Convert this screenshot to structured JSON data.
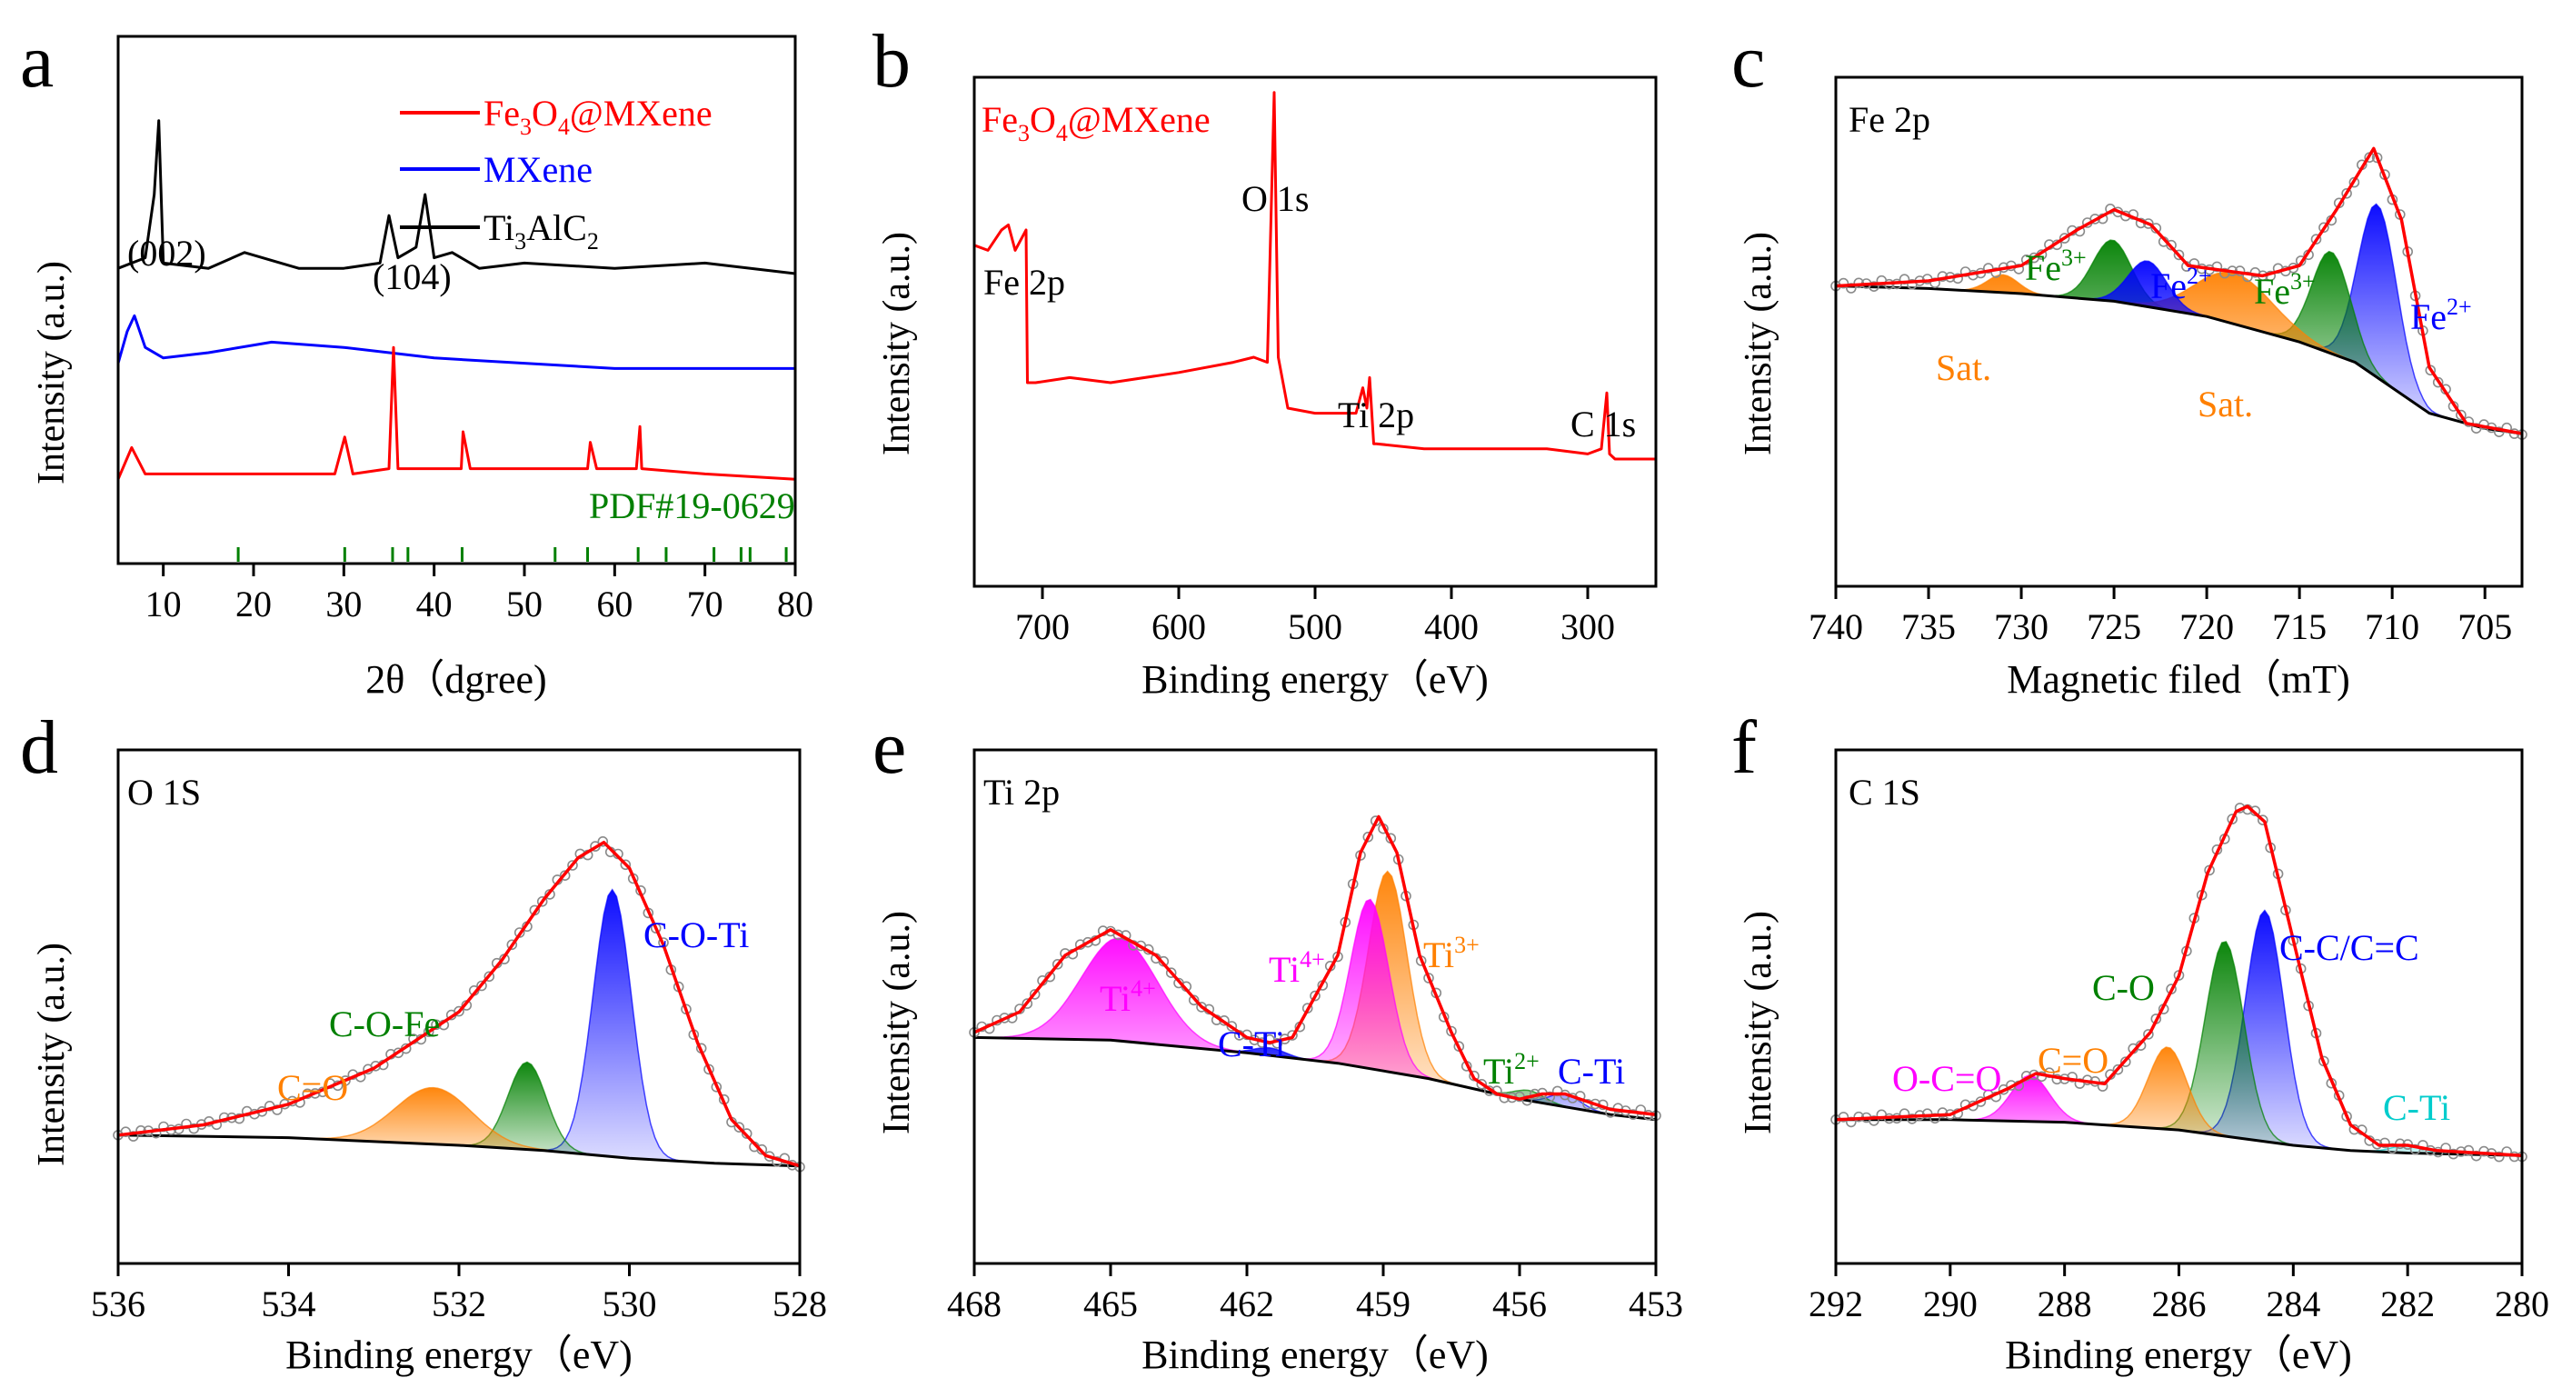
{
  "figure_id": "figure",
  "panels": [
    {
      "letter": "a",
      "title": "",
      "xlabel": "2θ（dgree)",
      "ylabel": "Intensity (a.u.)",
      "xticks": [
        "10",
        "20",
        "30",
        "40",
        "50",
        "60",
        "70",
        "80"
      ],
      "legend": [
        {
          "label_main": "Fe",
          "sub1": "3",
          "mid": "O",
          "sub2": "4",
          "tail": "@MXene",
          "color": "#ff0000"
        },
        {
          "label_main": "MXene",
          "color": "#0000ff"
        },
        {
          "label_main": "Ti",
          "sub1": "3",
          "mid": "AlC",
          "sub2": "2",
          "tail": "",
          "color": "#000000"
        }
      ],
      "annotations": [
        "(002)",
        "(104)",
        "PDF#19-0629"
      ]
    },
    {
      "letter": "b",
      "title": "Fe3O4@MXene",
      "title_parts": {
        "a": "Fe",
        "s1": "3",
        "b": "O",
        "s2": "4",
        "c": "@MXene"
      },
      "xlabel": "Binding energy（eV)",
      "ylabel": "Intensity (a.u.)",
      "xticks": [
        "700",
        "600",
        "500",
        "400",
        "300"
      ],
      "annotations": [
        "Fe 2p",
        "O 1s",
        "Ti 2p",
        "C 1s"
      ]
    },
    {
      "letter": "c",
      "title": "Fe 2p",
      "xlabel": "Magnetic filed（mT)",
      "ylabel": "Intensity (a.u.)",
      "xticks": [
        "740",
        "735",
        "730",
        "725",
        "720",
        "715",
        "710",
        "705"
      ],
      "annotations": [
        "Fe",
        "3+",
        "Fe",
        "2+",
        "Fe",
        "3+",
        "Fe",
        "2+",
        "Sat.",
        "Sat."
      ]
    },
    {
      "letter": "d",
      "title": "O 1S",
      "xlabel": "Binding energy（eV)",
      "ylabel": "Intensity (a.u.)",
      "xticks": [
        "536",
        "534",
        "532",
        "530",
        "528"
      ],
      "annotations": [
        "C-O-Ti",
        "C-O-Fe",
        "C=O"
      ]
    },
    {
      "letter": "e",
      "title": "Ti 2p",
      "xlabel": "Binding energy（eV)",
      "ylabel": "Intensity (a.u.)",
      "xticks": [
        "468",
        "465",
        "462",
        "459",
        "456",
        "453"
      ],
      "annotations": [
        "Ti",
        "4+",
        "Ti",
        "4+",
        "Ti",
        "3+",
        "C-Ti",
        "Ti",
        "2+",
        "C-Ti"
      ]
    },
    {
      "letter": "f",
      "title": "C 1S",
      "xlabel": "Binding energy（eV)",
      "ylabel": "Intensity (a.u.)",
      "xticks": [
        "292",
        "290",
        "288",
        "286",
        "284",
        "282",
        "280"
      ],
      "annotations": [
        "C-C/C=C",
        "C-O",
        "C=O",
        "O-C=O",
        "C-Ti"
      ]
    }
  ],
  "colors": {
    "red": "#ff0000",
    "blue": "#0000ff",
    "green": "#008000",
    "orange": "#ff8000",
    "magenta": "#ff00ff",
    "cyan": "#00cccc",
    "black": "#000000"
  },
  "chart_data": [
    {
      "type": "line",
      "panel": "a",
      "title": "",
      "xlabel": "2θ（dgree)",
      "ylabel": "Intensity (a.u.)",
      "xlim": [
        5,
        80
      ],
      "ylim": [
        0,
        10
      ],
      "series": [
        {
          "name": "Ti3AlC2",
          "color": "#000000",
          "x": [
            5,
            8,
            9,
            9.5,
            10,
            15,
            19,
            25,
            30,
            34,
            35,
            36,
            37,
            38,
            39,
            40,
            42,
            45,
            50,
            60,
            70,
            80
          ],
          "y": [
            5.6,
            5.8,
            7.0,
            8.4,
            5.7,
            5.6,
            5.9,
            5.6,
            5.6,
            5.7,
            6.6,
            5.8,
            5.9,
            6.0,
            7.0,
            5.8,
            5.9,
            5.6,
            5.7,
            5.6,
            5.7,
            5.5
          ]
        },
        {
          "name": "MXene",
          "color": "#0000ff",
          "x": [
            5,
            6,
            6.8,
            8,
            10,
            15,
            22,
            30,
            40,
            50,
            60,
            70,
            80
          ],
          "y": [
            3.8,
            4.4,
            4.7,
            4.1,
            3.9,
            4.0,
            4.2,
            4.1,
            3.9,
            3.8,
            3.7,
            3.7,
            3.7
          ]
        },
        {
          "name": "Fe3O4@MXene",
          "color": "#ff0000",
          "x": [
            5,
            6,
            6.5,
            8,
            18,
            29,
            30.1,
            31,
            35,
            35.5,
            36,
            43,
            43.2,
            44,
            53.4,
            57,
            57.3,
            58,
            62.4,
            62.8,
            63,
            70,
            80
          ],
          "y": [
            1.6,
            2.0,
            2.2,
            1.7,
            1.7,
            1.7,
            2.4,
            1.7,
            1.8,
            4.1,
            1.8,
            1.8,
            2.5,
            1.8,
            1.8,
            1.8,
            2.3,
            1.8,
            1.8,
            2.6,
            1.8,
            1.7,
            1.6
          ]
        }
      ],
      "reference_lines_x": [
        18.3,
        30.1,
        35.4,
        37.1,
        43.1,
        53.4,
        57.0,
        62.6,
        65.7,
        71.0,
        74.0,
        75.0,
        79.0
      ]
    },
    {
      "type": "line",
      "panel": "b",
      "title": "Fe3O4@MXene",
      "xlabel": "Binding energy（eV)",
      "ylabel": "Intensity (a.u.)",
      "xlim": [
        750,
        250
      ],
      "ylim": [
        0,
        10
      ],
      "series": [
        {
          "name": "Fe3O4@MXene",
          "color": "#ff0000",
          "x": [
            750,
            740,
            730,
            725,
            720,
            712,
            711,
            705,
            680,
            650,
            600,
            560,
            545,
            535,
            530,
            527,
            520,
            500,
            470,
            465,
            462,
            460,
            457,
            455,
            420,
            380,
            330,
            300,
            290,
            286,
            284,
            280,
            250
          ],
          "y": [
            6.7,
            6.6,
            7.0,
            7.1,
            6.6,
            7.0,
            4.0,
            4.0,
            4.1,
            4.0,
            4.2,
            4.4,
            4.5,
            4.4,
            9.7,
            4.5,
            3.5,
            3.4,
            3.4,
            3.9,
            3.5,
            4.1,
            2.8,
            2.8,
            2.7,
            2.7,
            2.7,
            2.6,
            2.7,
            3.8,
            2.6,
            2.5,
            2.5
          ]
        }
      ]
    },
    {
      "type": "area",
      "panel": "c",
      "title": "Fe 2p",
      "xlabel": "Magnetic filed（mT)",
      "ylabel": "Intensity (a.u.)",
      "xlim": [
        740,
        703
      ],
      "ylim": [
        0,
        10
      ],
      "series": [
        {
          "name": "baseline",
          "x": [
            740,
            735,
            730,
            725,
            720,
            715,
            712,
            710,
            708,
            705,
            703
          ],
          "y": [
            5.9,
            5.85,
            5.75,
            5.6,
            5.3,
            4.8,
            4.4,
            3.9,
            3.4,
            3.1,
            3.0
          ]
        },
        {
          "name": "envelope",
          "x": [
            740,
            735,
            730,
            727,
            725,
            723,
            721,
            719,
            717,
            715,
            713,
            711,
            709.5,
            708,
            706,
            703
          ],
          "y": [
            5.9,
            6.0,
            6.3,
            7.0,
            7.4,
            7.1,
            6.3,
            6.2,
            6.1,
            6.3,
            7.4,
            8.6,
            7.2,
            4.3,
            3.2,
            3.0
          ]
        },
        {
          "name": "Fe3+ (725.1)",
          "color": "#008000",
          "center": 725.1,
          "height": 1.2
        },
        {
          "name": "Fe2+ (723.2)",
          "color": "#0000ff",
          "center": 723.2,
          "height": 0.9
        },
        {
          "name": "Fe3+ (713.3)",
          "color": "#008000",
          "center": 713.3,
          "height": 2.0
        },
        {
          "name": "Fe2+ (710.8)",
          "color": "#0000ff",
          "center": 710.8,
          "height": 3.4
        },
        {
          "name": "Sat. (731)",
          "color": "#ff8000",
          "center": 731,
          "height": 0.35
        },
        {
          "name": "Sat. (718.5)",
          "color": "#ff8000",
          "center": 718.5,
          "height": 1.0
        }
      ]
    },
    {
      "type": "area",
      "panel": "d",
      "title": "O 1S",
      "xlabel": "Binding energy（eV)",
      "ylabel": "Intensity (a.u.)",
      "xlim": [
        536,
        528
      ],
      "ylim": [
        0,
        10
      ],
      "series": [
        {
          "name": "baseline",
          "x": [
            536,
            534,
            532,
            531,
            530,
            529,
            528
          ],
          "y": [
            2.5,
            2.45,
            2.3,
            2.2,
            2.05,
            1.95,
            1.9
          ]
        },
        {
          "name": "envelope",
          "x": [
            536,
            535,
            534,
            533,
            532,
            531.5,
            531,
            530.6,
            530.3,
            530,
            529.6,
            529.2,
            528.8,
            528.4,
            528
          ],
          "y": [
            2.5,
            2.7,
            3.1,
            3.8,
            4.9,
            5.9,
            7.1,
            7.9,
            8.2,
            7.7,
            6.2,
            4.3,
            2.8,
            2.1,
            1.9
          ]
        },
        {
          "name": "C-O-Ti (530.2)",
          "color": "#0000ff",
          "center": 530.2,
          "height": 5.2
        },
        {
          "name": "C-O-Fe (531.2)",
          "color": "#008000",
          "center": 531.2,
          "height": 1.7
        },
        {
          "name": "C=O (532.3)",
          "color": "#ff8000",
          "center": 532.3,
          "height": 1.1
        }
      ]
    },
    {
      "type": "area",
      "panel": "e",
      "title": "Ti 2p",
      "xlabel": "Binding energy（eV)",
      "ylabel": "Intensity (a.u.)",
      "xlim": [
        468,
        453
      ],
      "ylim": [
        0,
        10
      ],
      "series": [
        {
          "name": "baseline",
          "x": [
            468,
            465,
            462,
            460,
            458,
            456,
            454,
            453
          ],
          "y": [
            4.4,
            4.35,
            4.1,
            3.9,
            3.6,
            3.2,
            2.9,
            2.8
          ]
        },
        {
          "name": "envelope",
          "x": [
            468,
            467,
            466,
            465,
            464,
            463,
            462,
            461.5,
            461,
            460,
            459.5,
            459.1,
            458.7,
            458.2,
            457.5,
            457,
            456.5,
            456,
            455.5,
            455,
            454,
            453
          ],
          "y": [
            4.5,
            4.9,
            6.0,
            6.5,
            6.0,
            5.0,
            4.4,
            4.3,
            4.4,
            6.0,
            8.0,
            8.7,
            8.0,
            6.0,
            4.5,
            3.6,
            3.3,
            3.2,
            3.3,
            3.3,
            3.0,
            2.9
          ]
        },
        {
          "name": "Ti4+ (464.8)",
          "color": "#ff00ff",
          "center": 464.8,
          "height": 2.0
        },
        {
          "name": "Ti4+ (459.3)",
          "color": "#ff00ff",
          "center": 459.3,
          "height": 3.3
        },
        {
          "name": "Ti3+ (458.9)",
          "color": "#ff8000",
          "center": 458.9,
          "height": 3.9
        },
        {
          "name": "C-Ti (461.5)",
          "color": "#0000ff",
          "center": 461.5,
          "height": 0.15
        },
        {
          "name": "Ti2+ (455.8)",
          "color": "#008000",
          "center": 455.8,
          "height": 0.2
        },
        {
          "name": "C-Ti (455)",
          "color": "#0000ff",
          "center": 455.0,
          "height": 0.25
        }
      ]
    },
    {
      "type": "area",
      "panel": "f",
      "title": "C 1S",
      "xlabel": "Binding energy（eV)",
      "ylabel": "Intensity (a.u.)",
      "xlim": [
        292,
        280
      ],
      "ylim": [
        0,
        10
      ],
      "series": [
        {
          "name": "baseline",
          "x": [
            292,
            290,
            288,
            286,
            285,
            284,
            283,
            282,
            280
          ],
          "y": [
            2.8,
            2.8,
            2.75,
            2.6,
            2.45,
            2.3,
            2.2,
            2.15,
            2.1
          ]
        },
        {
          "name": "envelope",
          "x": [
            292,
            290,
            289,
            288.5,
            288,
            287.3,
            286.5,
            286,
            285.5,
            285,
            284.8,
            284.5,
            284,
            283.5,
            283,
            282.5,
            282,
            281.5,
            280
          ],
          "y": [
            2.8,
            2.9,
            3.4,
            3.7,
            3.6,
            3.5,
            4.5,
            5.6,
            7.6,
            8.8,
            8.9,
            8.6,
            6.3,
            4.0,
            2.7,
            2.3,
            2.3,
            2.2,
            2.1
          ]
        },
        {
          "name": "C-C/C=C (284.5)",
          "color": "#0000ff",
          "center": 284.5,
          "height": 4.5
        },
        {
          "name": "C-O (285.2)",
          "color": "#008000",
          "center": 285.2,
          "height": 3.8
        },
        {
          "name": "C=O (286.2)",
          "color": "#ff8000",
          "center": 286.2,
          "height": 1.6
        },
        {
          "name": "O-C=O (288.6)",
          "color": "#ff00ff",
          "center": 288.6,
          "height": 0.9
        },
        {
          "name": "C-Ti (282)",
          "color": "#00cccc",
          "center": 282.0,
          "height": 0.15
        }
      ]
    }
  ]
}
